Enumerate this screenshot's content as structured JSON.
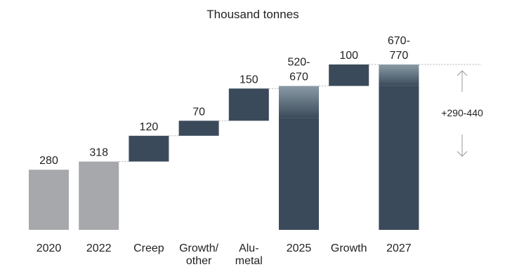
{
  "chart_data": {
    "type": "waterfall",
    "title": "Thousand tonnes",
    "colors": {
      "total": "#a7a8ab",
      "step": "#3a4a5a",
      "range_top": "#8a9ba6"
    },
    "bars": [
      {
        "category": "2020",
        "category_lines": [
          "2020"
        ],
        "kind": "total",
        "base": 0,
        "value": 280,
        "label_lines": [
          "280"
        ]
      },
      {
        "category": "2022",
        "category_lines": [
          "2022"
        ],
        "kind": "total",
        "base": 0,
        "value": 318,
        "label_lines": [
          "318"
        ]
      },
      {
        "category": "Creep",
        "category_lines": [
          "Creep"
        ],
        "kind": "step",
        "base": 318,
        "value": 120,
        "label_lines": [
          "120"
        ]
      },
      {
        "category": "Growth/ other",
        "category_lines": [
          "Growth/",
          "other"
        ],
        "kind": "step",
        "base": 438,
        "value": 70,
        "label_lines": [
          "70"
        ]
      },
      {
        "category": "Alu-metal",
        "category_lines": [
          "Alu-",
          "metal"
        ],
        "kind": "step",
        "base": 508,
        "value": 150,
        "label_lines": [
          "150"
        ]
      },
      {
        "category": "2025",
        "category_lines": [
          "2025"
        ],
        "kind": "range_total",
        "low": 520,
        "high": 670,
        "label_lines": [
          "520-",
          "670"
        ]
      },
      {
        "category": "Growth",
        "category_lines": [
          "Growth"
        ],
        "kind": "step",
        "base": 670,
        "value": 100,
        "label_lines": [
          "100"
        ]
      },
      {
        "category": "2027",
        "category_lines": [
          "2027"
        ],
        "kind": "range_total",
        "low": 670,
        "high": 770,
        "label_lines": [
          "670-",
          "770"
        ]
      }
    ],
    "annotation": {
      "text": "+290-440",
      "from": 318,
      "to": 770
    },
    "ylim": [
      0,
      770
    ],
    "grid": false
  }
}
